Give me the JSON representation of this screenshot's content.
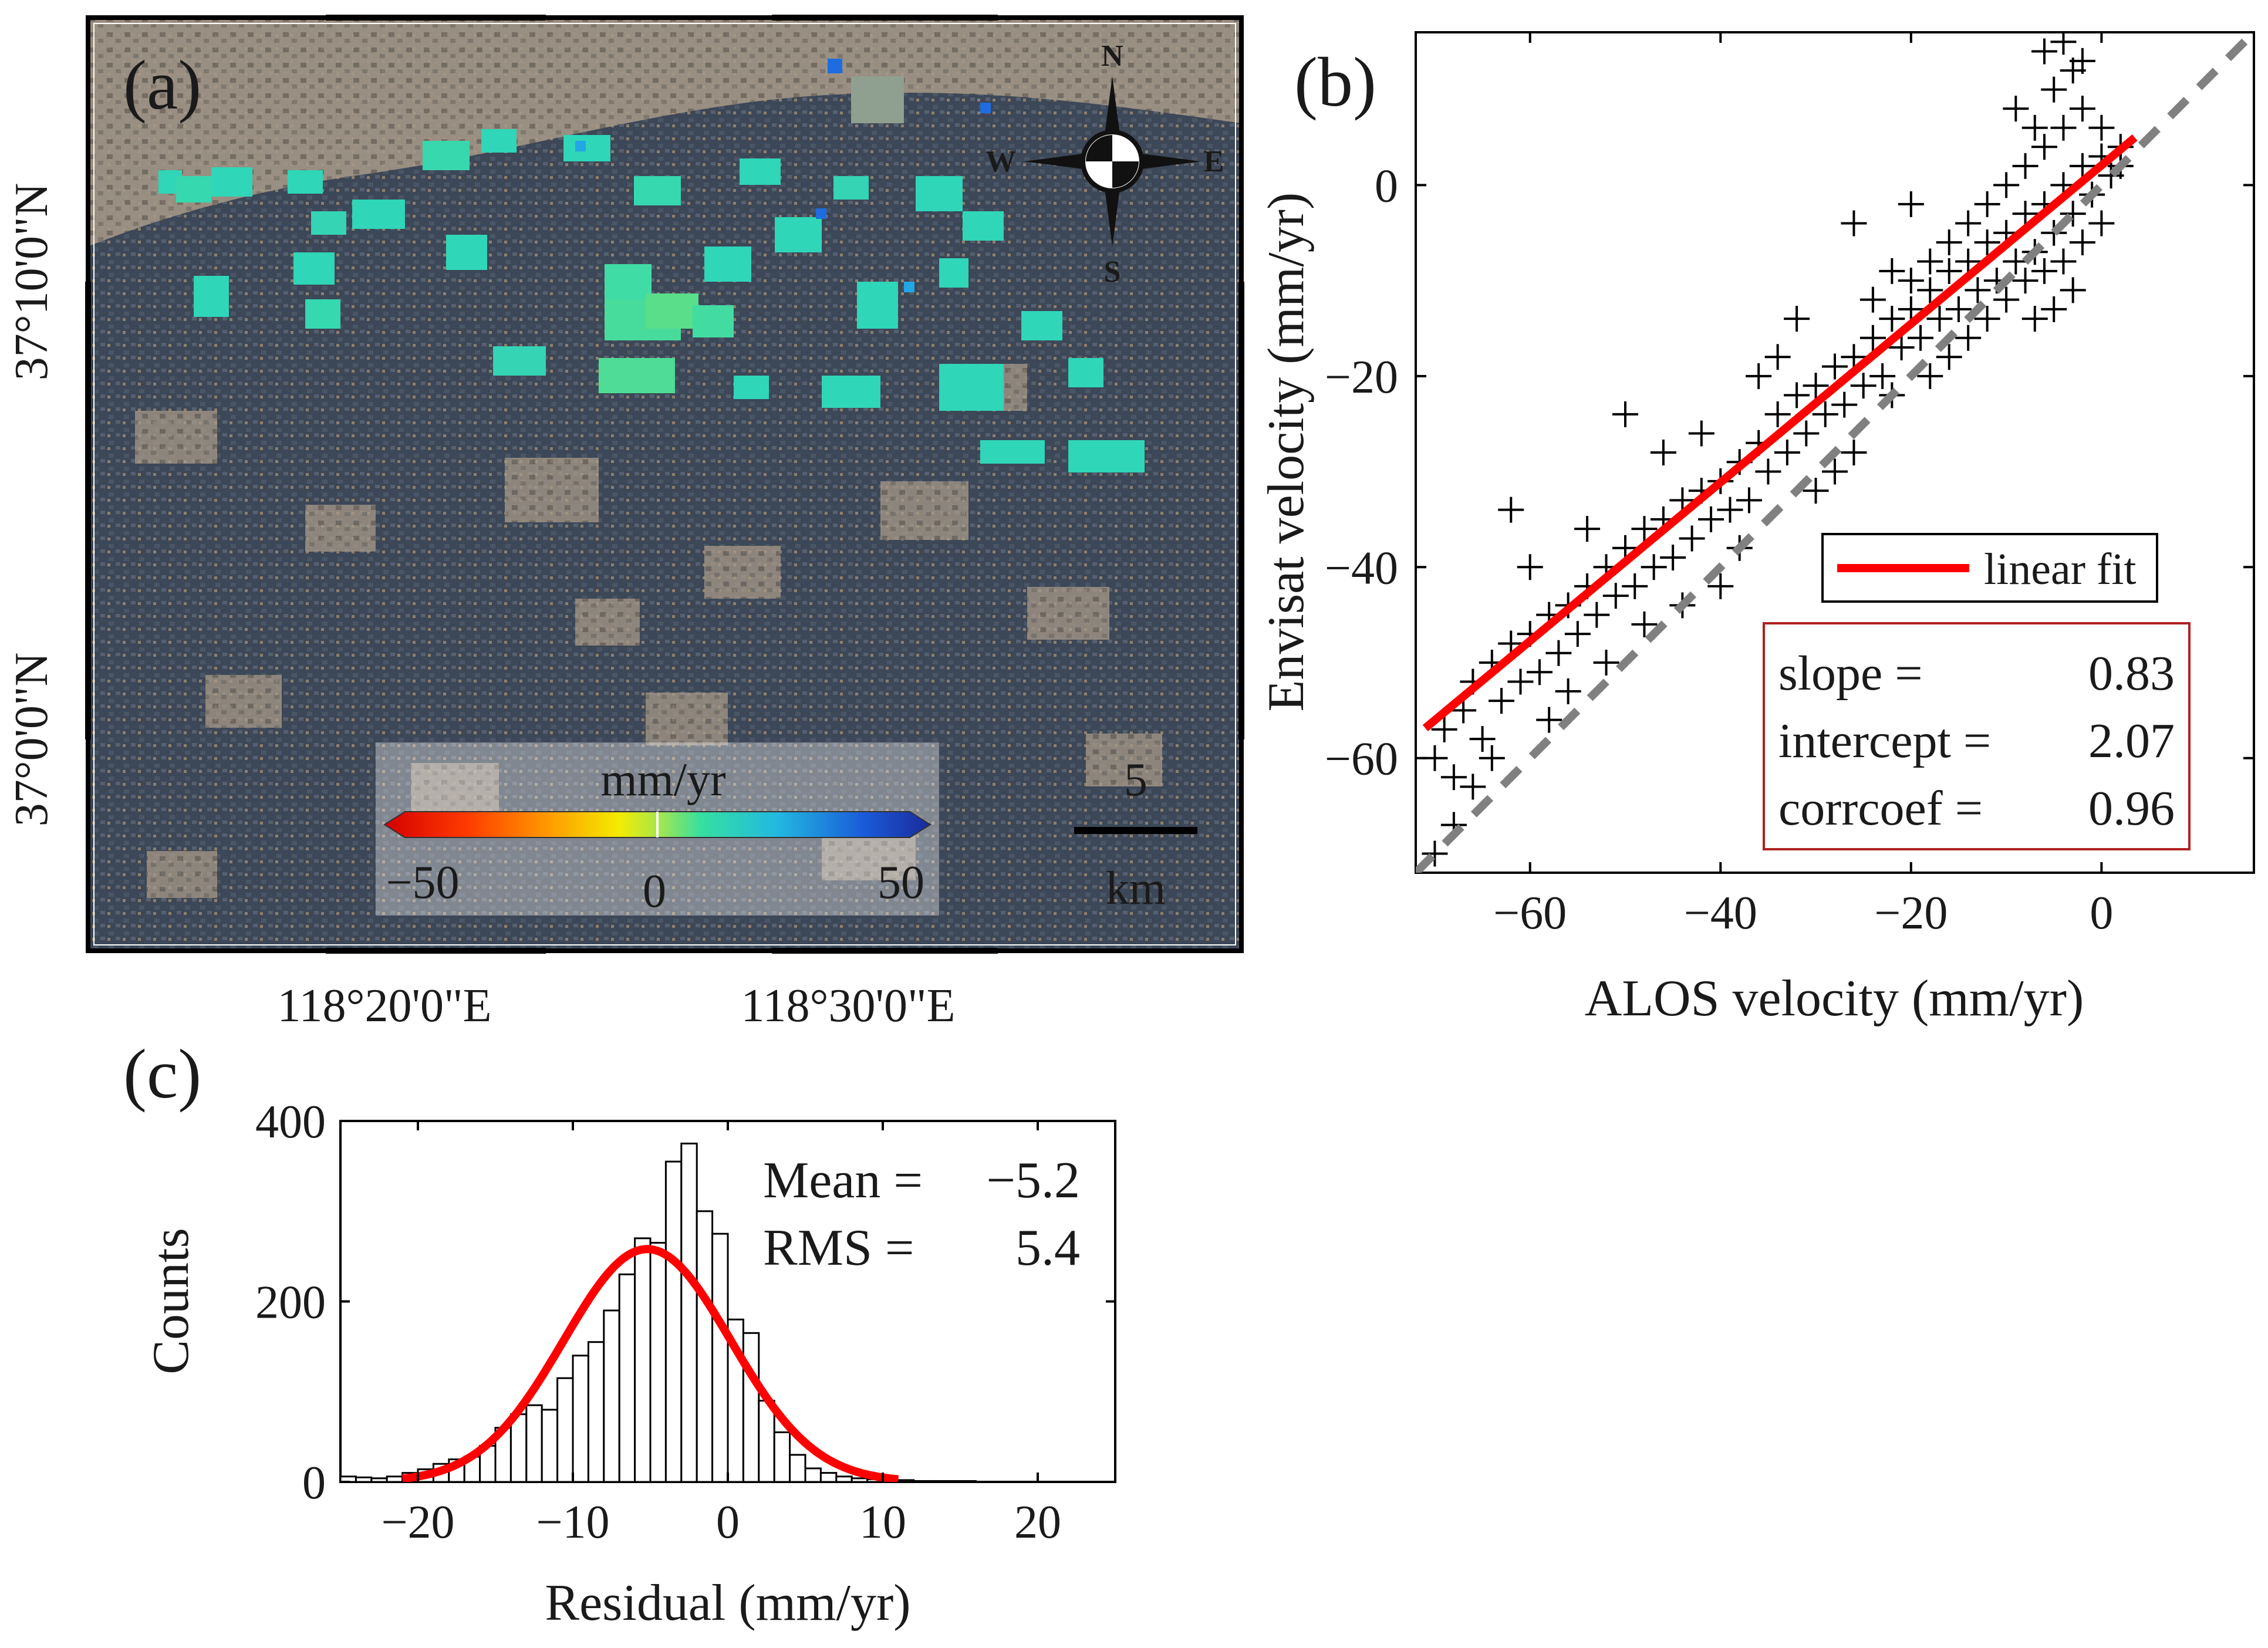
{
  "panel_a": {
    "label": "(a)",
    "lat_labels": [
      "37°10'0\"N",
      "37°0'0\"N"
    ],
    "lon_labels": [
      "118°20'0\"E",
      "118°30'0\"E"
    ],
    "compass": {
      "n": "N",
      "s": "S",
      "e": "E",
      "w": "W"
    },
    "colorbar": {
      "unit": "mm/yr",
      "min_label": "−50",
      "mid_label": "0",
      "max_label": "50",
      "min": -50,
      "max": 50
    },
    "scalebar": {
      "value": "5",
      "unit": "km"
    },
    "colors": {
      "land": "#a99a86",
      "fields": "#3b4654",
      "cells": "#2fd6b8"
    }
  },
  "chart_data": [
    {
      "id": "b",
      "type": "scatter",
      "label": "(b)",
      "xlabel": "ALOS velocity (mm/yr)",
      "ylabel": "Envisat velocity (mm/yr)",
      "xlim": [
        -72,
        16
      ],
      "ylim": [
        -72,
        16
      ],
      "xticks": [
        -60,
        -40,
        -20,
        0
      ],
      "yticks": [
        -60,
        -40,
        -20,
        0
      ],
      "xtick_labels": [
        "−60",
        "−40",
        "−20",
        "0"
      ],
      "ytick_labels": [
        "−60",
        "−40",
        "−20",
        "0"
      ],
      "fit": {
        "slope": 0.83,
        "intercept": 2.07,
        "x_range": [
          -71,
          3.5
        ],
        "label": "linear fit",
        "color": "#ff0000"
      },
      "one_to_one_color": "#808080",
      "stats": [
        {
          "name": "slope =",
          "value": "0.83"
        },
        {
          "name": "intercept =",
          "value": "2.07"
        },
        {
          "name": "corrcoef =",
          "value": "0.96"
        }
      ],
      "points": [
        [
          -70,
          -60
        ],
        [
          -69,
          -57
        ],
        [
          -68,
          -62
        ],
        [
          -67,
          -55
        ],
        [
          -66,
          -52
        ],
        [
          -65,
          -58
        ],
        [
          -64,
          -50
        ],
        [
          -63,
          -54
        ],
        [
          -62,
          -48
        ],
        [
          -61,
          -52
        ],
        [
          -60,
          -47
        ],
        [
          -59,
          -51
        ],
        [
          -58,
          -45
        ],
        [
          -57,
          -49
        ],
        [
          -56,
          -44
        ],
        [
          -55,
          -47
        ],
        [
          -54,
          -42
        ],
        [
          -53,
          -45
        ],
        [
          -52,
          -40
        ],
        [
          -51,
          -43
        ],
        [
          -50,
          -38
        ],
        [
          -49,
          -42
        ],
        [
          -48,
          -36
        ],
        [
          -47,
          -40
        ],
        [
          -46,
          -35
        ],
        [
          -45,
          -39
        ],
        [
          -44,
          -33
        ],
        [
          -43,
          -37
        ],
        [
          -42,
          -32
        ],
        [
          -41,
          -35
        ],
        [
          -40,
          -31
        ],
        [
          -39,
          -34
        ],
        [
          -38,
          -29
        ],
        [
          -37,
          -33
        ],
        [
          -36,
          -27
        ],
        [
          -35,
          -30
        ],
        [
          -34,
          -24
        ],
        [
          -33,
          -28
        ],
        [
          -32,
          -22
        ],
        [
          -31,
          -26
        ],
        [
          -30,
          -21
        ],
        [
          -29,
          -24
        ],
        [
          -28,
          -19
        ],
        [
          -27,
          -23
        ],
        [
          -26,
          -18
        ],
        [
          -25,
          -21
        ],
        [
          -24,
          -16
        ],
        [
          -23,
          -20
        ],
        [
          -22,
          -14
        ],
        [
          -21,
          -17
        ],
        [
          -20,
          -13
        ],
        [
          -19,
          -16
        ],
        [
          -18,
          -11
        ],
        [
          -17,
          -14
        ],
        [
          -16,
          -9
        ],
        [
          -15,
          -13
        ],
        [
          -14,
          -8
        ],
        [
          -13,
          -11
        ],
        [
          -12,
          -6
        ],
        [
          -11,
          -10
        ],
        [
          -10,
          -5
        ],
        [
          -9,
          -8
        ],
        [
          -8,
          -3
        ],
        [
          -7,
          -7
        ],
        [
          -6,
          -2
        ],
        [
          -5,
          -5
        ],
        [
          -4,
          0
        ],
        [
          -3,
          -3
        ],
        [
          -2,
          2
        ],
        [
          -1,
          -1
        ],
        [
          0,
          3
        ],
        [
          1,
          1
        ],
        [
          2,
          4
        ],
        [
          -20,
          -10
        ],
        [
          -18,
          -8
        ],
        [
          -16,
          -6
        ],
        [
          -14,
          -4
        ],
        [
          -12,
          -2
        ],
        [
          -10,
          0
        ],
        [
          -8,
          2
        ],
        [
          -6,
          4
        ],
        [
          -4,
          6
        ],
        [
          -2,
          8
        ],
        [
          0,
          6
        ],
        [
          2,
          2
        ],
        [
          -16,
          -18
        ],
        [
          -14,
          -16
        ],
        [
          -12,
          -14
        ],
        [
          -10,
          -12
        ],
        [
          -8,
          -10
        ],
        [
          -6,
          -9
        ],
        [
          -4,
          -8
        ],
        [
          -2,
          -6
        ],
        [
          0,
          -4
        ],
        [
          -3,
          -11
        ],
        [
          -5,
          -13
        ],
        [
          -7,
          -14
        ],
        [
          -9,
          8
        ],
        [
          -7,
          6
        ],
        [
          -5,
          10
        ],
        [
          -3,
          12
        ],
        [
          -6,
          14
        ],
        [
          -4,
          15
        ],
        [
          -2,
          13
        ],
        [
          -24,
          -12
        ],
        [
          -22,
          -9
        ],
        [
          -26,
          -4
        ],
        [
          -20,
          -2
        ],
        [
          -62,
          -34
        ],
        [
          -66,
          -63
        ],
        [
          -68,
          -67
        ],
        [
          -70,
          -70
        ],
        [
          -64,
          -60
        ],
        [
          -58,
          -56
        ],
        [
          -56,
          -53
        ],
        [
          -52,
          -50
        ],
        [
          -48,
          -46
        ],
        [
          -44,
          -44
        ],
        [
          -40,
          -42
        ],
        [
          -38,
          -38
        ],
        [
          -30,
          -32
        ],
        [
          -28,
          -30
        ],
        [
          -34,
          -18
        ],
        [
          -32,
          -14
        ],
        [
          -36,
          -20
        ],
        [
          -50,
          -24
        ],
        [
          -46,
          -28
        ],
        [
          -54,
          -36
        ],
        [
          -60,
          -40
        ],
        [
          -42,
          -26
        ],
        [
          -26,
          -28
        ],
        [
          -22,
          -22
        ],
        [
          -18,
          -20
        ]
      ]
    },
    {
      "id": "c",
      "type": "histogram",
      "label": "(c)",
      "xlabel": "Residual (mm/yr)",
      "ylabel": "Counts",
      "xlim": [
        -25,
        25
      ],
      "ylim": [
        0,
        400
      ],
      "xticks": [
        -20,
        -10,
        0,
        10,
        20
      ],
      "yticks": [
        0,
        200,
        400
      ],
      "xtick_labels": [
        "−20",
        "−10",
        "0",
        "10",
        "20"
      ],
      "ytick_labels": [
        "0",
        "200",
        "400"
      ],
      "bin_width": 1,
      "bins": [
        {
          "x": -25,
          "count": 6
        },
        {
          "x": -24,
          "count": 5
        },
        {
          "x": -23,
          "count": 4
        },
        {
          "x": -22,
          "count": 6
        },
        {
          "x": -21,
          "count": 10
        },
        {
          "x": -20,
          "count": 14
        },
        {
          "x": -19,
          "count": 20
        },
        {
          "x": -18,
          "count": 25
        },
        {
          "x": -17,
          "count": 28
        },
        {
          "x": -16,
          "count": 40
        },
        {
          "x": -15,
          "count": 60
        },
        {
          "x": -14,
          "count": 75
        },
        {
          "x": -13,
          "count": 85
        },
        {
          "x": -12,
          "count": 80
        },
        {
          "x": -11,
          "count": 115
        },
        {
          "x": -10,
          "count": 140
        },
        {
          "x": -9,
          "count": 155
        },
        {
          "x": -8,
          "count": 190
        },
        {
          "x": -7,
          "count": 230
        },
        {
          "x": -6,
          "count": 270
        },
        {
          "x": -5,
          "count": 265
        },
        {
          "x": -4,
          "count": 355
        },
        {
          "x": -3,
          "count": 375
        },
        {
          "x": -2,
          "count": 300
        },
        {
          "x": -1,
          "count": 275
        },
        {
          "x": 0,
          "count": 180
        },
        {
          "x": 1,
          "count": 165
        },
        {
          "x": 2,
          "count": 90
        },
        {
          "x": 3,
          "count": 55
        },
        {
          "x": 4,
          "count": 30
        },
        {
          "x": 5,
          "count": 15
        },
        {
          "x": 6,
          "count": 10
        },
        {
          "x": 7,
          "count": 6
        },
        {
          "x": 8,
          "count": 4
        },
        {
          "x": 9,
          "count": 3
        },
        {
          "x": 10,
          "count": 2
        },
        {
          "x": 11,
          "count": 2
        },
        {
          "x": 12,
          "count": 1
        },
        {
          "x": 13,
          "count": 1
        },
        {
          "x": 14,
          "count": 1
        },
        {
          "x": 15,
          "count": 1
        }
      ],
      "fit": {
        "type": "gaussian",
        "mean": -5.2,
        "sigma": 5.4,
        "peak": 258,
        "x_range": [
          -21,
          11
        ],
        "color": "#ff0000"
      },
      "stats": [
        {
          "name": "Mean =",
          "value": "−5.2"
        },
        {
          "name": "RMS  =",
          "value": "5.4"
        }
      ]
    }
  ]
}
